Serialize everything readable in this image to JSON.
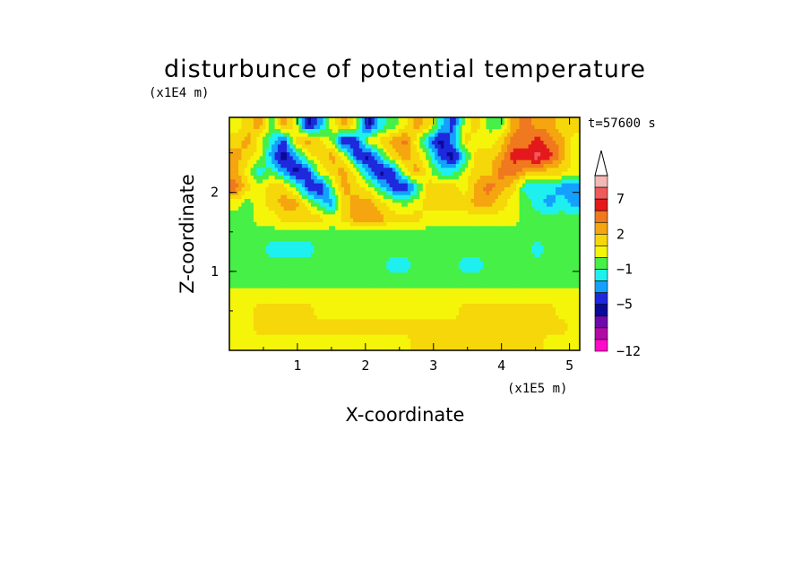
{
  "chart_data": {
    "type": "heatmap",
    "title": "disturbunce of potential temperature",
    "xlabel": "X-coordinate",
    "ylabel": "Z-coordinate",
    "x_unit": "(x1E5 m)",
    "y_unit": "(x1E4 m)",
    "time_label": "t=57600 s",
    "xlim": [
      0,
      5.15
    ],
    "ylim": [
      0,
      2.95
    ],
    "x_ticks": [
      "1",
      "2",
      "3",
      "4",
      "5"
    ],
    "y_ticks": [
      "1",
      "2"
    ],
    "colorbar": {
      "labels": [
        "7",
        "2",
        "-1",
        "-5",
        "-12"
      ],
      "colors": [
        "#f2b8b5",
        "#f05a5a",
        "#e3191c",
        "#f0781e",
        "#f5a50f",
        "#f5d70a",
        "#f5f50a",
        "#46f046",
        "#1ef0f0",
        "#14a0ff",
        "#1e28dc",
        "#0a0a96",
        "#6e0aaa",
        "#b40aa5",
        "#ff0ac8"
      ],
      "extends_max": true
    },
    "field": {
      "description_levels": "contour bands",
      "rows_top_to_bottom": [
        [
          6,
          5,
          4,
          7,
          4,
          6,
          11,
          9,
          6,
          4,
          6,
          11,
          8,
          7,
          6,
          4,
          5,
          8,
          10,
          6,
          5,
          7,
          7,
          4,
          3,
          4,
          4,
          5,
          5
        ],
        [
          5,
          4,
          6,
          8,
          10,
          5,
          4,
          5,
          7,
          11,
          10,
          6,
          5,
          4,
          3,
          6,
          9,
          11,
          9,
          5,
          6,
          6,
          5,
          3,
          3,
          2,
          3,
          4,
          6
        ],
        [
          4,
          5,
          6,
          9,
          11,
          9,
          6,
          5,
          4,
          6,
          10,
          11,
          8,
          5,
          4,
          5,
          7,
          10,
          11,
          8,
          5,
          5,
          4,
          2,
          2,
          1,
          2,
          4,
          6
        ],
        [
          4,
          6,
          8,
          7,
          9,
          11,
          10,
          6,
          5,
          4,
          6,
          9,
          11,
          10,
          6,
          4,
          6,
          8,
          8,
          6,
          5,
          5,
          3,
          3,
          4,
          4,
          5,
          5,
          6
        ],
        [
          3,
          5,
          6,
          5,
          5,
          7,
          10,
          11,
          7,
          4,
          5,
          6,
          8,
          10,
          11,
          8,
          5,
          5,
          5,
          6,
          4,
          3,
          4,
          5,
          8,
          8,
          8,
          9,
          9
        ],
        [
          6,
          7,
          6,
          5,
          4,
          4,
          6,
          8,
          9,
          5,
          4,
          4,
          5,
          6,
          7,
          6,
          5,
          5,
          5,
          5,
          4,
          4,
          5,
          6,
          7,
          8,
          9,
          8,
          9
        ],
        [
          7,
          7,
          6,
          6,
          5,
          5,
          5,
          5,
          6,
          5,
          4,
          4,
          4,
          5,
          5,
          5,
          6,
          6,
          6,
          6,
          6,
          6,
          6,
          6,
          7,
          7,
          7,
          7,
          7
        ],
        [
          7,
          7,
          7,
          7,
          7,
          7,
          7,
          7,
          7,
          7,
          7,
          7,
          7,
          7,
          7,
          7,
          7,
          7,
          7,
          7,
          7,
          7,
          7,
          7,
          7,
          7,
          7,
          7,
          7
        ],
        [
          7,
          7,
          7,
          8,
          8,
          8,
          8,
          7,
          7,
          7,
          7,
          7,
          7,
          7,
          7,
          7,
          7,
          7,
          7,
          7,
          7,
          7,
          7,
          7,
          7,
          8,
          7,
          7,
          7
        ],
        [
          7,
          7,
          7,
          7,
          7,
          7,
          7,
          7,
          7,
          7,
          7,
          7,
          7,
          8,
          8,
          7,
          7,
          7,
          7,
          8,
          8,
          7,
          7,
          7,
          7,
          7,
          7,
          7,
          7
        ],
        [
          7,
          7,
          7,
          7,
          7,
          7,
          7,
          7,
          7,
          7,
          7,
          7,
          7,
          7,
          7,
          7,
          7,
          7,
          7,
          7,
          7,
          7,
          7,
          7,
          7,
          7,
          7,
          7,
          7
        ],
        [
          6,
          6,
          6,
          6,
          6,
          6,
          6,
          6,
          6,
          6,
          6,
          6,
          6,
          6,
          6,
          6,
          6,
          6,
          6,
          6,
          6,
          6,
          6,
          6,
          6,
          6,
          6,
          6,
          6
        ],
        [
          6,
          6,
          5,
          5,
          5,
          5,
          5,
          6,
          6,
          6,
          6,
          6,
          6,
          6,
          6,
          6,
          6,
          6,
          6,
          5,
          5,
          5,
          5,
          5,
          5,
          5,
          5,
          6,
          6
        ],
        [
          6,
          6,
          5,
          5,
          5,
          5,
          5,
          5,
          5,
          5,
          5,
          5,
          5,
          5,
          5,
          5,
          5,
          5,
          5,
          5,
          5,
          5,
          5,
          5,
          5,
          5,
          5,
          5,
          6
        ],
        [
          6,
          6,
          6,
          6,
          6,
          6,
          6,
          6,
          6,
          6,
          6,
          6,
          6,
          6,
          6,
          5,
          5,
          5,
          5,
          5,
          5,
          5,
          5,
          5,
          5,
          5,
          6,
          6,
          6
        ]
      ]
    }
  }
}
